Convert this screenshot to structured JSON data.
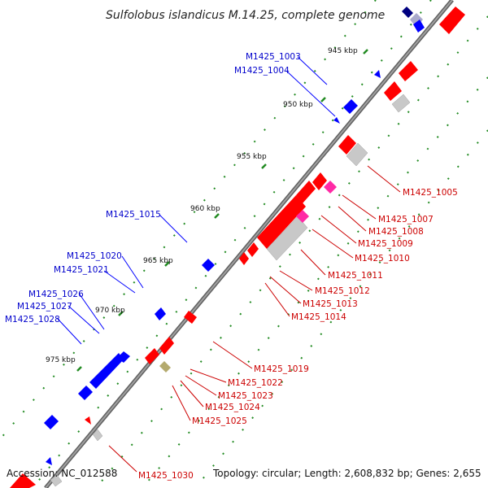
{
  "title": "Sulfolobus islandicus M.14.25, complete genome",
  "footer": {
    "accession": "Accession: NC_012588",
    "topology": "Topology: circular; Length: 2,608,832 bp; Genes: 2,655"
  },
  "colors": {
    "forward_gene": "#ff0000",
    "reverse_gene": "#0000ff",
    "forward_label": "#cc0000",
    "reverse_label": "#0000cc",
    "rna_gene": "#ff2aa5",
    "pseudo_gene": "#c8c8c8",
    "other_feature": "#b4aa6e",
    "dark_gene": "#000080",
    "backbone": "#808080",
    "tick": "#228b22"
  },
  "scale_labels": [
    "945 kbp",
    "950 kbp",
    "955 kbp",
    "960 kbp",
    "965 kbp",
    "970 kbp",
    "975 kbp"
  ],
  "reverse_strand_labels": [
    "M1425_1003",
    "M1425_1004",
    "M1425_1015",
    "M1425_1020",
    "M1425_1021",
    "M1425_1026",
    "M1425_1027",
    "M1425_1028"
  ],
  "forward_strand_labels": [
    "M1425_1005",
    "M1425_1007",
    "M1425_1008",
    "M1425_1009",
    "M1425_1010",
    "M1425_1011",
    "M1425_1012",
    "M1425_1013",
    "M1425_1014",
    "M1425_1019",
    "M1425_1022",
    "M1425_1023",
    "M1425_1024",
    "M1425_1025",
    "M1425_1030"
  ]
}
